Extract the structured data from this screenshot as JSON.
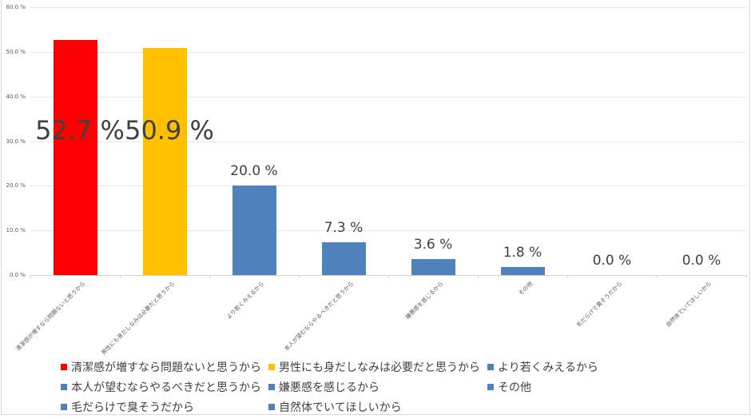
{
  "chart_data": {
    "type": "bar",
    "title": "",
    "xlabel": "",
    "ylabel": "",
    "ylim": [
      0,
      60
    ],
    "yticks": [
      "0.0 %",
      "10.0 %",
      "20.0 %",
      "30.0 %",
      "40.0 %",
      "50.0 %",
      "60.0 %"
    ],
    "grid": true,
    "legend_position": "bottom",
    "categories": [
      "清潔感が増すなら問題ないと思うから",
      "男性にも身だしなみは必要だと思うから",
      "より若くみえるから",
      "本人が望むならやるべきだと思うから",
      "嫌悪感を感じるから",
      "その他",
      "毛だらけで臭そうだから",
      "自然体でいてほしいから"
    ],
    "values": [
      52.7,
      50.9,
      20.0,
      7.3,
      3.6,
      1.8,
      0.0,
      0.0
    ],
    "data_labels": [
      "52.7 %",
      "50.9 %",
      "20.0 %",
      "7.3 %",
      "3.6 %",
      "1.8 %",
      "0.0 %",
      "0.0 %"
    ],
    "colors": [
      "#FF0000",
      "#FFC000",
      "#4F81BD",
      "#4F81BD",
      "#4F81BD",
      "#4F81BD",
      "#4F81BD",
      "#4F81BD"
    ]
  },
  "legend": [
    {
      "label": "清潔感が増すなら問題ないと思うから",
      "color": "#FF0000"
    },
    {
      "label": "男性にも身だしなみは必要だと思うから",
      "color": "#FFC000"
    },
    {
      "label": "より若くみえるから",
      "color": "#4F81BD"
    },
    {
      "label": "本人が望むならやるべきだと思うから",
      "color": "#4F81BD"
    },
    {
      "label": "嫌悪感を感じるから",
      "color": "#4F81BD"
    },
    {
      "label": "その他",
      "color": "#4F81BD"
    },
    {
      "label": "毛だらけで臭そうだから",
      "color": "#4F81BD"
    },
    {
      "label": "自然体でいてほしいから",
      "color": "#4F81BD"
    }
  ]
}
